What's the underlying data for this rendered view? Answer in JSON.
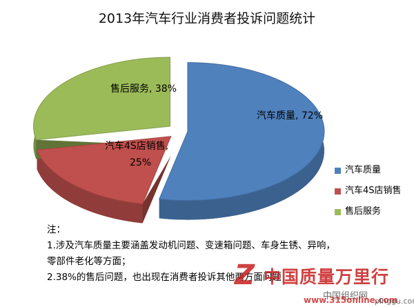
{
  "chart_data": {
    "type": "pie",
    "title": "2013年汽车行业消费者投诉问题统计",
    "series": [
      {
        "name": "汽车质量",
        "label": "汽车质量, 72%",
        "value": 72,
        "color": "#4F81BD"
      },
      {
        "name": "汽车4S店销售",
        "label": "汽车4S店销售,",
        "label_line2": "25%",
        "value": 25,
        "color": "#C0504D"
      },
      {
        "name": "售后服务",
        "label": "售后服务, 38%",
        "value": 38,
        "color": "#9BBB59"
      }
    ],
    "legend_position": "right"
  },
  "notes": {
    "heading": "注：",
    "line1": "1.涉及汽车质量主要涵盖发动机问题、变速箱问题、车身生锈、异响，",
    "line1b": "零部件老化等方面；",
    "line2": "2.38%的售后问题，也出现在消费者投诉其他两方面问题"
  },
  "watermark": {
    "logo": "Z",
    "text": "中国质量万里行",
    "url1": "中国组织网",
    "url2": "www.315online.com",
    "url3": "pinggu.com"
  }
}
